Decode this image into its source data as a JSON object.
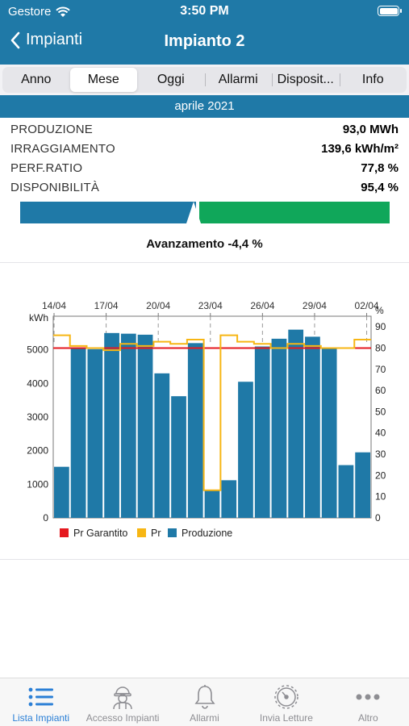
{
  "status": {
    "carrier": "Gestore",
    "time": "3:50 PM"
  },
  "nav": {
    "back_label": "Impianti",
    "title": "Impianto 2"
  },
  "tabs": [
    {
      "label": "Anno",
      "active": false
    },
    {
      "label": "Mese",
      "active": true
    },
    {
      "label": "Oggi",
      "active": false
    },
    {
      "label": "Allarmi",
      "active": false
    },
    {
      "label": "Disposit...",
      "active": false
    },
    {
      "label": "Info",
      "active": false
    }
  ],
  "period": "aprile 2021",
  "stats": [
    {
      "label": "PRODUZIONE",
      "value": "93,0 MWh"
    },
    {
      "label": "IRRAGGIAMENTO",
      "value": "139,6 kWh/m²"
    },
    {
      "label": "PERF.RATIO",
      "value": "77,8 %"
    },
    {
      "label": "DISPONIBILITÀ",
      "value": "95,4 %"
    }
  ],
  "progress": {
    "fraction": 0.475,
    "advance_label": "Avanzamento -4,4 %"
  },
  "colors": {
    "accent": "#1f79a7",
    "green": "#10a75a",
    "red": "#e5191f",
    "orange": "#f7b614",
    "tab_active": "#2a7fd6"
  },
  "chart_data": {
    "type": "bar",
    "x_ticks": [
      "14/04",
      "17/04",
      "20/04",
      "23/04",
      "26/04",
      "29/04",
      "02/04"
    ],
    "ylabel_left": "kWh",
    "ylabel_right": "%",
    "ylim_left": [
      0,
      6000
    ],
    "ylim_right": [
      0,
      95
    ],
    "yticks_left": [
      0,
      1000,
      2000,
      3000,
      4000,
      5000
    ],
    "yticks_right": [
      0,
      10,
      20,
      30,
      40,
      50,
      60,
      70,
      80,
      90
    ],
    "pr_guaranteed": 80,
    "series": [
      {
        "name": "Produzione",
        "kind": "bar",
        "values": [
          1520,
          5050,
          5020,
          5500,
          5480,
          5450,
          4300,
          3620,
          5200,
          830,
          1120,
          4050,
          5100,
          5330,
          5600,
          5390,
          5050,
          1570,
          1950
        ]
      },
      {
        "name": "Pr",
        "kind": "step",
        "values": [
          86,
          81,
          80,
          79,
          82,
          81,
          83,
          82,
          84,
          13,
          86,
          83,
          82,
          80,
          82,
          81,
          80,
          80,
          84
        ]
      }
    ],
    "legend": [
      "Pr Garantito",
      "Pr",
      "Produzione"
    ],
    "legend_position": "bottom-left"
  },
  "tabbar": [
    {
      "label": "Lista Impianti",
      "icon": "list-icon",
      "active": true
    },
    {
      "label": "Accesso Impianti",
      "icon": "worker-icon",
      "active": false
    },
    {
      "label": "Allarmi",
      "icon": "bell-icon",
      "active": false
    },
    {
      "label": "Invia Letture",
      "icon": "meter-icon",
      "active": false
    },
    {
      "label": "Altro",
      "icon": "more-icon",
      "active": false
    }
  ]
}
